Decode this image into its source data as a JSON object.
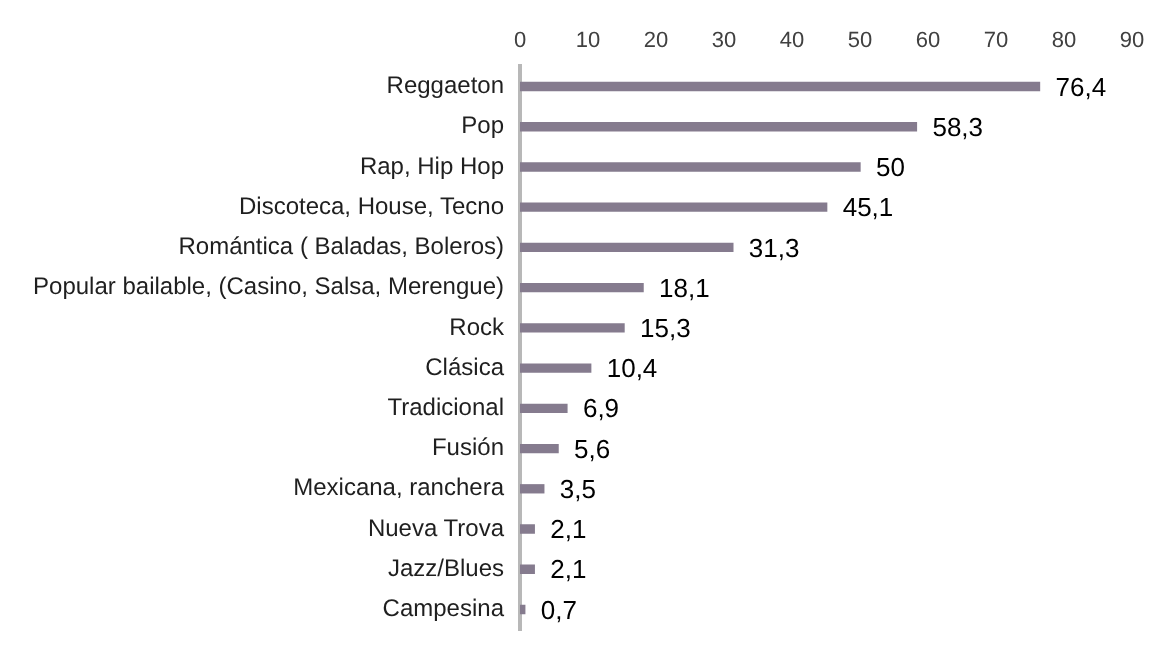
{
  "chart_data": {
    "type": "bar",
    "orientation": "horizontal",
    "categories": [
      "Reggaeton",
      "Pop",
      "Rap, Hip Hop",
      "Discoteca, House, Tecno",
      "Romántica ( Baladas, Boleros)",
      "Popular bailable, (Casino, Salsa, Merengue)",
      "Rock",
      "Clásica",
      "Tradicional",
      "Fusión",
      "Mexicana, ranchera",
      "Nueva Trova",
      "Jazz/Blues",
      "Campesina"
    ],
    "values": [
      76.4,
      58.3,
      50,
      45.1,
      31.3,
      18.1,
      15.3,
      10.4,
      6.9,
      5.6,
      3.5,
      2.1,
      2.1,
      0.7
    ],
    "value_labels": [
      "76,4",
      "58,3",
      "50",
      "45,1",
      "31,3",
      "18,1",
      "15,3",
      "10,4",
      "6,9",
      "5,6",
      "3,5",
      "2,1",
      "2,1",
      "0,7"
    ],
    "color": "#857b8e",
    "xlim": [
      0,
      90
    ],
    "xticks": [
      0,
      10,
      20,
      30,
      40,
      50,
      60,
      70,
      80,
      90
    ],
    "grid": false
  }
}
